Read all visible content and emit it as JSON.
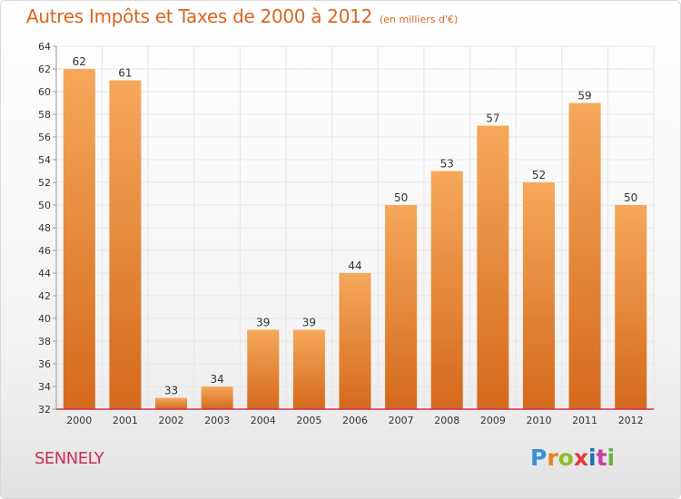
{
  "chart_data": {
    "type": "bar",
    "title": "Autres Impôts et Taxes de 2000 à 2012",
    "subtitle": "(en milliers d'€)",
    "categories": [
      "2000",
      "2001",
      "2002",
      "2003",
      "2004",
      "2005",
      "2006",
      "2007",
      "2008",
      "2009",
      "2010",
      "2011",
      "2012"
    ],
    "values": [
      62,
      61,
      33,
      34,
      39,
      39,
      44,
      50,
      53,
      57,
      52,
      59,
      50
    ],
    "ylim": [
      32,
      64
    ],
    "yticks": [
      32,
      34,
      36,
      38,
      40,
      42,
      44,
      46,
      48,
      50,
      52,
      54,
      56,
      58,
      60,
      62,
      64
    ],
    "grid": true,
    "colors": {
      "bar_top": "#f6a85a",
      "bar_bottom": "#d5691c",
      "axis": "#cc2e58",
      "grid": "#e6e6e6",
      "title": "#d9661f"
    }
  },
  "commune": "SENNELY",
  "brand": {
    "letters": [
      "P",
      "r",
      "o",
      "x",
      "i",
      "t",
      "i"
    ]
  }
}
